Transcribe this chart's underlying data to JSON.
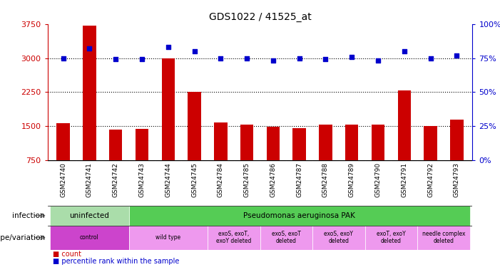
{
  "title": "GDS1022 / 41525_at",
  "samples": [
    "GSM24740",
    "GSM24741",
    "GSM24742",
    "GSM24743",
    "GSM24744",
    "GSM24745",
    "GSM24784",
    "GSM24785",
    "GSM24786",
    "GSM24787",
    "GSM24788",
    "GSM24789",
    "GSM24790",
    "GSM24791",
    "GSM24792",
    "GSM24793"
  ],
  "counts": [
    1560,
    3720,
    1430,
    1440,
    3000,
    2250,
    1580,
    1540,
    1490,
    1460,
    1530,
    1540,
    1530,
    2280,
    1510,
    1640
  ],
  "percentile_ranks": [
    75,
    82,
    74,
    74,
    83,
    80,
    75,
    75,
    73,
    75,
    74,
    76,
    73,
    80,
    75,
    77
  ],
  "ylim_left": [
    750,
    3750
  ],
  "ylim_right": [
    0,
    100
  ],
  "yticks_left": [
    750,
    1500,
    2250,
    3000,
    3750
  ],
  "yticks_right": [
    0,
    25,
    50,
    75,
    100
  ],
  "bar_color": "#cc0000",
  "dot_color": "#0000cc",
  "infection_groups": [
    {
      "label": "uninfected",
      "start": 0,
      "end": 3,
      "color": "#aaddaa"
    },
    {
      "label": "Pseudomonas aeruginosa PAK",
      "start": 3,
      "end": 16,
      "color": "#55cc55"
    }
  ],
  "genotype_groups": [
    {
      "label": "control",
      "start": 0,
      "end": 3,
      "color": "#cc44cc"
    },
    {
      "label": "wild type",
      "start": 3,
      "end": 6,
      "color": "#ee99ee"
    },
    {
      "label": "exoS, exoT,\nexoY deleted",
      "start": 6,
      "end": 8,
      "color": "#ee99ee"
    },
    {
      "label": "exoS, exoT\ndeleted",
      "start": 8,
      "end": 10,
      "color": "#ee99ee"
    },
    {
      "label": "exoS, exoY\ndeleted",
      "start": 10,
      "end": 12,
      "color": "#ee99ee"
    },
    {
      "label": "exoT, exoY\ndeleted",
      "start": 12,
      "end": 14,
      "color": "#ee99ee"
    },
    {
      "label": "needle complex\ndeleted",
      "start": 14,
      "end": 16,
      "color": "#ee99ee"
    }
  ],
  "infection_label": "infection",
  "genotype_label": "genotype/variation",
  "legend_count_label": "count",
  "legend_pct_label": "percentile rank within the sample",
  "bg_color": "#ffffff",
  "tick_label_color": "#555555",
  "left_axis_color": "#cc0000",
  "right_axis_color": "#0000cc",
  "label_row_color": "#cccccc"
}
